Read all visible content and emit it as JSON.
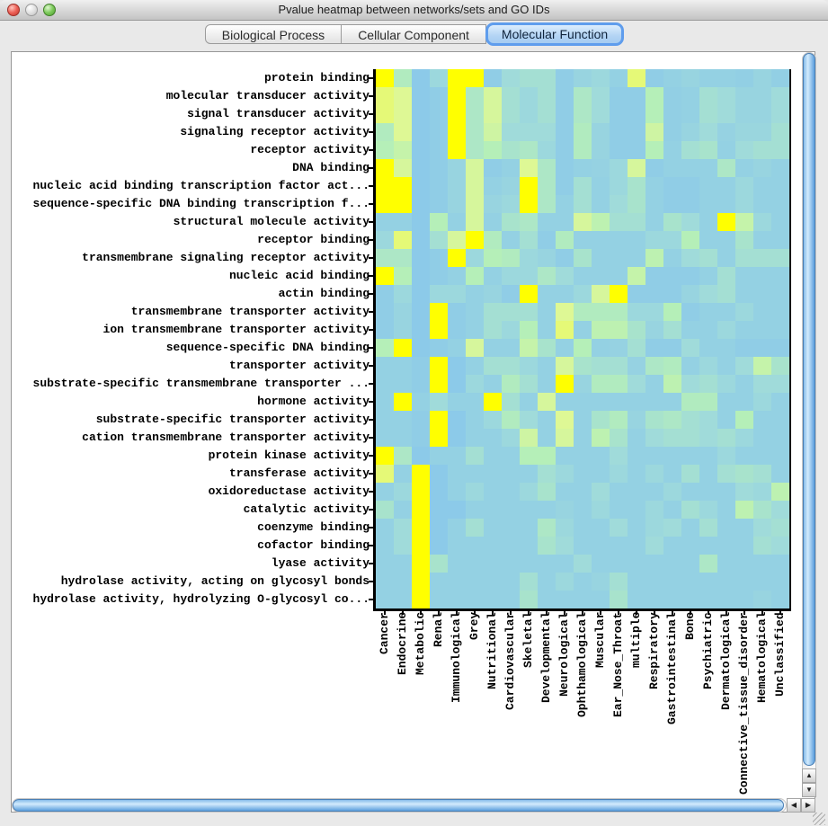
{
  "window": {
    "title": "Pvalue heatmap between networks/sets and GO IDs"
  },
  "traffic_lights": [
    {
      "name": "close-button",
      "color": "#ec5f55"
    },
    {
      "name": "minimize-button",
      "color": "#dedede"
    },
    {
      "name": "zoom-button",
      "color": "#7cc95a"
    }
  ],
  "tabs": [
    {
      "label": "Biological Process",
      "selected": false
    },
    {
      "label": "Cellular Component",
      "selected": false
    },
    {
      "label": "Molecular Function",
      "selected": true
    }
  ],
  "scrollbars": {
    "up_glyph": "▲",
    "down_glyph": "▼",
    "left_glyph": "◀",
    "right_glyph": "▶"
  },
  "chart_data": {
    "type": "heatmap",
    "title": "Pvalue heatmap between networks/sets and GO IDs",
    "legend_position": "none",
    "grid": false,
    "color_scale_note": "low p-value = yellow, high p-value = light blue",
    "palette_stops": [
      [
        0.0,
        "#8ccae9"
      ],
      [
        0.25,
        "#a0dbda"
      ],
      [
        0.5,
        "#b5efb8"
      ],
      [
        0.75,
        "#def895"
      ],
      [
        1.0,
        "#ffff00"
      ]
    ],
    "rows": [
      "protein binding",
      "molecular transducer activity",
      "signal transducer activity",
      "signaling receptor activity",
      "receptor activity",
      "DNA binding",
      "nucleic acid binding transcription factor act...",
      "sequence-specific DNA binding transcription f...",
      "structural molecule activity",
      "receptor binding",
      "transmembrane signaling receptor activity",
      "nucleic acid binding",
      "actin binding",
      "transmembrane transporter activity",
      "ion transmembrane transporter activity",
      "sequence-specific DNA binding",
      "transporter activity",
      "substrate-specific transmembrane transporter ...",
      "hormone activity",
      "substrate-specific transporter activity",
      "cation transmembrane transporter activity",
      "protein kinase activity",
      "transferase activity",
      "oxidoreductase activity",
      "catalytic activity",
      "coenzyme binding",
      "cofactor binding",
      "lyase activity",
      "hydrolase activity, acting on glycosyl bonds",
      "hydrolase activity, hydrolyzing O-glycosyl co..."
    ],
    "categories": [
      "Cancer",
      "Endocrine",
      "Metabolic",
      "Renal",
      "Immunological",
      "Grey",
      "Nutritional",
      "Cardiovascular",
      "Skeletal",
      "Developmental",
      "Neurological",
      "Ophthamological",
      "Muscular",
      "Ear_Nose_Throat",
      "multiple",
      "Respiratory",
      "Gastrointestinal",
      "Bone",
      "Psychiatric",
      "Dermatological",
      "Connective_tissue_disorder",
      "Hematological",
      "Unclassified"
    ],
    "matrix": [
      [
        1,
        0.45,
        0,
        0.2,
        1,
        1,
        0.05,
        0.25,
        0.3,
        0.3,
        0.05,
        0.15,
        0.2,
        0.1,
        0.8,
        0.05,
        0.1,
        0.15,
        0.1,
        0.1,
        0.08,
        0.15,
        0.08
      ],
      [
        0.8,
        0.75,
        0,
        0.05,
        1,
        0.4,
        0.7,
        0.3,
        0.2,
        0.3,
        0.05,
        0.4,
        0.25,
        0.05,
        0.05,
        0.5,
        0.08,
        0.1,
        0.3,
        0.25,
        0.15,
        0.15,
        0.25
      ],
      [
        0.8,
        0.75,
        0,
        0.05,
        1,
        0.4,
        0.7,
        0.3,
        0.2,
        0.3,
        0.05,
        0.4,
        0.25,
        0.05,
        0.05,
        0.5,
        0.08,
        0.1,
        0.3,
        0.25,
        0.15,
        0.15,
        0.25
      ],
      [
        0.45,
        0.75,
        0,
        0.05,
        1,
        0.4,
        0.65,
        0.25,
        0.25,
        0.25,
        0.05,
        0.45,
        0.15,
        0.05,
        0.05,
        0.65,
        0.08,
        0.15,
        0.25,
        0.12,
        0.18,
        0.18,
        0.3
      ],
      [
        0.5,
        0.6,
        0,
        0.05,
        1,
        0.4,
        0.5,
        0.35,
        0.4,
        0.2,
        0.05,
        0.45,
        0.15,
        0.05,
        0.05,
        0.5,
        0.1,
        0.3,
        0.35,
        0.1,
        0.25,
        0.3,
        0.3
      ],
      [
        1,
        0.7,
        0,
        0.05,
        0.15,
        0.7,
        0.05,
        0.1,
        0.75,
        0.4,
        0.05,
        0.1,
        0.12,
        0.2,
        0.7,
        0.05,
        0.1,
        0.1,
        0.1,
        0.4,
        0.1,
        0.15,
        0.1
      ],
      [
        1,
        1,
        0,
        0.05,
        0.15,
        0.7,
        0.1,
        0.15,
        1,
        0.4,
        0.05,
        0.3,
        0.1,
        0.2,
        0.35,
        0.1,
        0.05,
        0.05,
        0.1,
        0.1,
        0.2,
        0.1,
        0.1
      ],
      [
        1,
        1,
        0,
        0.05,
        0.15,
        0.7,
        0.15,
        0.2,
        1,
        0.4,
        0.1,
        0.3,
        0.1,
        0.25,
        0.35,
        0.1,
        0.05,
        0.05,
        0.1,
        0.1,
        0.2,
        0.1,
        0.1
      ],
      [
        0.1,
        0.1,
        0,
        0.5,
        0.1,
        0.7,
        0.1,
        0.35,
        0.4,
        0.1,
        0.1,
        0.7,
        0.55,
        0.3,
        0.3,
        0.1,
        0.35,
        0.25,
        0.1,
        1,
        0.6,
        0.2,
        0.1
      ],
      [
        0.2,
        0.8,
        0,
        0.3,
        0.7,
        1,
        0.45,
        0.1,
        0.3,
        0.05,
        0.45,
        0.1,
        0.1,
        0.1,
        0.1,
        0.2,
        0.2,
        0.5,
        0.1,
        0.1,
        0.35,
        0.1,
        0.1
      ],
      [
        0.4,
        0.4,
        0,
        0.05,
        1,
        0.2,
        0.5,
        0.45,
        0.2,
        0.15,
        0.05,
        0.35,
        0.1,
        0.1,
        0.1,
        0.55,
        0.1,
        0.25,
        0.3,
        0.1,
        0.3,
        0.3,
        0.3
      ],
      [
        1,
        0.5,
        0,
        0.05,
        0.1,
        0.5,
        0.1,
        0.2,
        0.2,
        0.4,
        0.25,
        0.1,
        0.1,
        0.1,
        0.6,
        0.05,
        0.05,
        0.05,
        0.1,
        0.3,
        0.1,
        0.1,
        0.1
      ],
      [
        0.05,
        0.2,
        0,
        0.2,
        0.2,
        0.1,
        0.15,
        0.05,
        1,
        0.1,
        0.1,
        0.2,
        0.7,
        1,
        0.05,
        0.05,
        0.05,
        0.15,
        0.25,
        0.3,
        0.1,
        0.1,
        0.1
      ],
      [
        0.05,
        0.15,
        0,
        1,
        0.05,
        0.1,
        0.3,
        0.3,
        0.3,
        0.1,
        0.75,
        0.45,
        0.45,
        0.45,
        0.2,
        0.2,
        0.5,
        0.05,
        0.1,
        0.1,
        0.2,
        0.1,
        0.1
      ],
      [
        0.05,
        0.15,
        0,
        1,
        0.05,
        0.1,
        0.3,
        0.2,
        0.5,
        0.1,
        0.8,
        0.1,
        0.55,
        0.55,
        0.35,
        0.15,
        0.3,
        0.1,
        0.1,
        0.2,
        0.1,
        0.1,
        0.1
      ],
      [
        0.5,
        1,
        0,
        0.05,
        0.1,
        0.7,
        0.1,
        0.1,
        0.6,
        0.35,
        0.1,
        0.5,
        0.1,
        0.12,
        0.3,
        0.05,
        0.05,
        0.25,
        0.1,
        0.1,
        0.05,
        0.05,
        0.05
      ],
      [
        0.1,
        0.1,
        0.05,
        1,
        0,
        0.1,
        0.3,
        0.3,
        0.2,
        0.1,
        0.7,
        0.35,
        0.3,
        0.3,
        0.12,
        0.4,
        0.45,
        0.1,
        0.2,
        0.1,
        0.25,
        0.6,
        0.35
      ],
      [
        0.1,
        0.1,
        0.05,
        1,
        0,
        0.2,
        0.1,
        0.45,
        0.3,
        0.1,
        1,
        0.15,
        0.45,
        0.45,
        0.25,
        0.1,
        0.55,
        0.25,
        0.3,
        0.2,
        0.1,
        0.25,
        0.25
      ],
      [
        0.1,
        1,
        0.1,
        0.25,
        0.1,
        0.1,
        1,
        0.3,
        0.1,
        0.7,
        0.1,
        0.1,
        0.1,
        0.1,
        0.1,
        0.1,
        0.1,
        0.45,
        0.45,
        0.1,
        0.1,
        0.2,
        0.1
      ],
      [
        0.1,
        0.1,
        0.05,
        1,
        0,
        0.1,
        0.2,
        0.45,
        0.25,
        0.1,
        0.75,
        0.1,
        0.35,
        0.45,
        0.15,
        0.35,
        0.4,
        0.3,
        0.25,
        0.1,
        0.5,
        0.1,
        0.1
      ],
      [
        0.1,
        0.1,
        0.05,
        1,
        0,
        0.1,
        0.1,
        0.2,
        0.65,
        0.1,
        0.7,
        0.1,
        0.55,
        0.35,
        0.1,
        0.25,
        0.3,
        0.3,
        0.25,
        0.3,
        0.2,
        0.1,
        0.1
      ],
      [
        1,
        0.4,
        0,
        0.1,
        0.1,
        0.3,
        0.1,
        0.1,
        0.5,
        0.5,
        0.1,
        0.1,
        0.1,
        0.25,
        0.1,
        0.1,
        0.1,
        0.1,
        0.1,
        0.2,
        0.1,
        0.1,
        0.1
      ],
      [
        0.8,
        0.1,
        1,
        0,
        0.1,
        0.1,
        0.1,
        0.1,
        0.1,
        0.3,
        0.2,
        0.1,
        0.1,
        0.2,
        0.1,
        0.2,
        0.1,
        0.3,
        0.1,
        0.3,
        0.35,
        0.3,
        0.1
      ],
      [
        0.1,
        0.2,
        1,
        0,
        0.1,
        0.2,
        0.1,
        0.1,
        0.2,
        0.35,
        0.1,
        0.1,
        0.25,
        0.1,
        0.1,
        0.1,
        0.2,
        0.1,
        0.1,
        0.1,
        0.25,
        0.2,
        0.55
      ],
      [
        0.35,
        0.1,
        1,
        0,
        0,
        0.1,
        0.1,
        0.1,
        0.1,
        0.1,
        0.15,
        0.1,
        0.2,
        0.1,
        0.1,
        0.2,
        0.1,
        0.3,
        0.2,
        0.1,
        0.55,
        0.35,
        0.25
      ],
      [
        0.1,
        0.25,
        1,
        0,
        0.1,
        0.3,
        0.1,
        0.1,
        0.1,
        0.4,
        0.2,
        0.1,
        0.1,
        0.25,
        0.1,
        0.2,
        0.25,
        0.1,
        0.3,
        0.1,
        0.1,
        0.25,
        0.3
      ],
      [
        0.1,
        0.25,
        1,
        0,
        0.1,
        0.1,
        0.1,
        0.1,
        0.1,
        0.35,
        0.25,
        0.1,
        0.1,
        0.1,
        0.1,
        0.25,
        0.1,
        0.1,
        0.1,
        0.1,
        0.1,
        0.3,
        0.25
      ],
      [
        0.1,
        0.1,
        1,
        0.35,
        0.1,
        0.1,
        0.1,
        0.1,
        0.1,
        0.1,
        0.1,
        0.25,
        0.1,
        0.1,
        0.1,
        0.1,
        0.1,
        0.1,
        0.4,
        0.1,
        0.1,
        0.1,
        0.1
      ],
      [
        0.1,
        0.1,
        1,
        0.1,
        0.1,
        0.1,
        0.1,
        0.1,
        0.3,
        0.1,
        0.2,
        0.1,
        0.15,
        0.3,
        0.1,
        0.1,
        0.1,
        0.1,
        0.1,
        0.1,
        0.1,
        0.1,
        0.1
      ],
      [
        0.1,
        0.1,
        1,
        0.1,
        0.1,
        0.1,
        0.1,
        0.1,
        0.35,
        0.1,
        0.1,
        0.1,
        0.1,
        0.35,
        0.1,
        0.1,
        0.1,
        0.1,
        0.1,
        0.1,
        0.1,
        0.15,
        0.1
      ]
    ]
  }
}
